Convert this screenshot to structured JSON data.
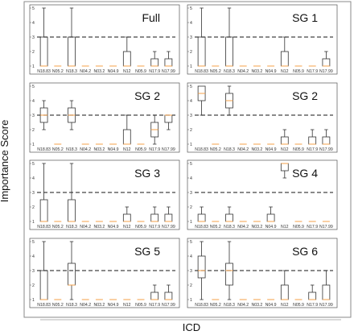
{
  "figure": {
    "ylabel": "Importance Score",
    "xlabel": "ICD"
  },
  "colors": {
    "median": "#f5a04a",
    "box": "#333333",
    "threshold": "#444444",
    "frame": "#555555"
  },
  "chart_data": [
    {
      "type": "box",
      "title": "Full",
      "categories": [
        "N18.83",
        "N05.2",
        "N18.3",
        "N04.2",
        "N03.2",
        "N04.9",
        "N12",
        "N05.9",
        "N17.9",
        "N17.99"
      ],
      "ylim": [
        1,
        5
      ],
      "yticks": [
        1,
        2,
        3,
        4,
        5
      ],
      "threshold": 3,
      "boxes": [
        {
          "min": 1,
          "q1": 1,
          "median": 1,
          "q3": 3,
          "max": 5
        },
        {
          "min": 1,
          "q1": 1,
          "median": 1,
          "q3": 1,
          "max": 1
        },
        {
          "min": 1,
          "q1": 1,
          "median": 1,
          "q3": 3,
          "max": 5
        },
        {
          "min": 1,
          "q1": 1,
          "median": 1,
          "q3": 1,
          "max": 1
        },
        {
          "min": 1,
          "q1": 1,
          "median": 1,
          "q3": 1,
          "max": 1
        },
        {
          "min": 1,
          "q1": 1,
          "median": 1,
          "q3": 1,
          "max": 1
        },
        {
          "min": 1,
          "q1": 1,
          "median": 1,
          "q3": 2,
          "max": 3
        },
        {
          "min": 1,
          "q1": 1,
          "median": 1,
          "q3": 1,
          "max": 1
        },
        {
          "min": 1,
          "q1": 1,
          "median": 1,
          "q3": 1.5,
          "max": 2
        },
        {
          "min": 1,
          "q1": 1,
          "median": 1,
          "q3": 1.5,
          "max": 2
        }
      ]
    },
    {
      "type": "box",
      "title": "SG 1",
      "categories": [
        "N18.83",
        "N05.2",
        "N18.3",
        "N04.2",
        "N03.2",
        "N04.9",
        "N12",
        "N05.9",
        "N17.9",
        "N17.99"
      ],
      "ylim": [
        1,
        5
      ],
      "yticks": [
        1,
        2,
        3,
        4,
        5
      ],
      "threshold": 3,
      "boxes": [
        {
          "min": 1,
          "q1": 1,
          "median": 1,
          "q3": 3,
          "max": 5
        },
        {
          "min": 1,
          "q1": 1,
          "median": 1,
          "q3": 1,
          "max": 1
        },
        {
          "min": 1,
          "q1": 1,
          "median": 1,
          "q3": 3,
          "max": 5
        },
        {
          "min": 1,
          "q1": 1,
          "median": 1,
          "q3": 1,
          "max": 1
        },
        {
          "min": 1,
          "q1": 1,
          "median": 1,
          "q3": 1,
          "max": 1
        },
        {
          "min": 1,
          "q1": 1,
          "median": 1,
          "q3": 1,
          "max": 1
        },
        {
          "min": 1,
          "q1": 1,
          "median": 1,
          "q3": 2,
          "max": 3
        },
        {
          "min": 1,
          "q1": 1,
          "median": 1,
          "q3": 1,
          "max": 1
        },
        {
          "min": 1,
          "q1": 1,
          "median": 1,
          "q3": 1,
          "max": 1
        },
        {
          "min": 1,
          "q1": 1,
          "median": 1,
          "q3": 1.5,
          "max": 2
        }
      ]
    },
    {
      "type": "box",
      "title": "SG 2",
      "categories": [
        "N18.83",
        "N05.2",
        "N18.3",
        "N04.2",
        "N03.2",
        "N04.9",
        "N12",
        "N05.9",
        "N17.9",
        "N17.99"
      ],
      "ylim": [
        1,
        5
      ],
      "yticks": [
        1,
        2,
        3,
        4,
        5
      ],
      "threshold": 3,
      "boxes": [
        {
          "min": 2,
          "q1": 2.5,
          "median": 3,
          "q3": 3.5,
          "max": 4
        },
        {
          "min": 1,
          "q1": 1,
          "median": 1,
          "q3": 1,
          "max": 1
        },
        {
          "min": 2,
          "q1": 2.5,
          "median": 3,
          "q3": 3.5,
          "max": 4
        },
        {
          "min": 1,
          "q1": 1,
          "median": 1,
          "q3": 1,
          "max": 1
        },
        {
          "min": 1,
          "q1": 1,
          "median": 1,
          "q3": 1,
          "max": 1
        },
        {
          "min": 1,
          "q1": 1,
          "median": 1,
          "q3": 1,
          "max": 1
        },
        {
          "min": 1,
          "q1": 1,
          "median": 1,
          "q3": 2,
          "max": 3
        },
        {
          "min": 1,
          "q1": 1,
          "median": 1,
          "q3": 1,
          "max": 1
        },
        {
          "min": 1,
          "q1": 1.5,
          "median": 2,
          "q3": 2.5,
          "max": 3
        },
        {
          "min": 2,
          "q1": 2.5,
          "median": 3,
          "q3": 3,
          "max": 3
        }
      ]
    },
    {
      "type": "box",
      "title": "SG 2",
      "categories": [
        "N18.83",
        "N05.2",
        "N18.3",
        "N04.2",
        "N03.2",
        "N04.9",
        "N12",
        "N05.9",
        "N17.9",
        "N17.99"
      ],
      "ylim": [
        1,
        5
      ],
      "yticks": [
        1,
        2,
        3,
        4,
        5
      ],
      "threshold": 3,
      "boxes": [
        {
          "min": 3,
          "q1": 4,
          "median": 4.5,
          "q3": 5,
          "max": 5
        },
        {
          "min": 1,
          "q1": 1,
          "median": 1,
          "q3": 1,
          "max": 1
        },
        {
          "min": 3,
          "q1": 3.5,
          "median": 4,
          "q3": 4.5,
          "max": 5
        },
        {
          "min": 1,
          "q1": 1,
          "median": 1,
          "q3": 1,
          "max": 1
        },
        {
          "min": 1,
          "q1": 1,
          "median": 1,
          "q3": 1,
          "max": 1
        },
        {
          "min": 1,
          "q1": 1,
          "median": 1,
          "q3": 1,
          "max": 1
        },
        {
          "min": 1,
          "q1": 1,
          "median": 1,
          "q3": 1.5,
          "max": 2
        },
        {
          "min": 1,
          "q1": 1,
          "median": 1,
          "q3": 1,
          "max": 1
        },
        {
          "min": 1,
          "q1": 1,
          "median": 1,
          "q3": 1.5,
          "max": 2
        },
        {
          "min": 1,
          "q1": 1,
          "median": 1,
          "q3": 1.5,
          "max": 2
        }
      ]
    },
    {
      "type": "box",
      "title": "SG 3",
      "categories": [
        "N18.83",
        "N05.2",
        "N18.3",
        "N04.2",
        "N03.2",
        "N04.9",
        "N12",
        "N05.9",
        "N17.9",
        "N17.99"
      ],
      "ylim": [
        1,
        5
      ],
      "yticks": [
        1,
        2,
        3,
        4,
        5
      ],
      "threshold": 3,
      "boxes": [
        {
          "min": 1,
          "q1": 1,
          "median": 1,
          "q3": 2.5,
          "max": 5
        },
        {
          "min": 1,
          "q1": 1,
          "median": 1,
          "q3": 1,
          "max": 1
        },
        {
          "min": 1,
          "q1": 1,
          "median": 1,
          "q3": 2.5,
          "max": 5
        },
        {
          "min": 1,
          "q1": 1,
          "median": 1,
          "q3": 1,
          "max": 1
        },
        {
          "min": 1,
          "q1": 1,
          "median": 1,
          "q3": 1,
          "max": 1
        },
        {
          "min": 1,
          "q1": 1,
          "median": 1,
          "q3": 1,
          "max": 1
        },
        {
          "min": 1,
          "q1": 1,
          "median": 1,
          "q3": 1.5,
          "max": 2
        },
        {
          "min": 1,
          "q1": 1,
          "median": 1,
          "q3": 1,
          "max": 1
        },
        {
          "min": 1,
          "q1": 1,
          "median": 1,
          "q3": 1.5,
          "max": 2
        },
        {
          "min": 1,
          "q1": 1,
          "median": 1,
          "q3": 1.5,
          "max": 2
        }
      ]
    },
    {
      "type": "box",
      "title": "SG 4",
      "categories": [
        "N18.83",
        "N05.2",
        "N18.3",
        "N04.2",
        "N03.2",
        "N04.9",
        "N12",
        "N05.9",
        "N17.9",
        "N17.99"
      ],
      "ylim": [
        1,
        5
      ],
      "yticks": [
        1,
        2,
        3,
        4,
        5
      ],
      "threshold": 3,
      "boxes": [
        {
          "min": 1,
          "q1": 1,
          "median": 1,
          "q3": 1.5,
          "max": 2
        },
        {
          "min": 1,
          "q1": 1,
          "median": 1,
          "q3": 1,
          "max": 1
        },
        {
          "min": 1,
          "q1": 1,
          "median": 1,
          "q3": 1.5,
          "max": 2
        },
        {
          "min": 1,
          "q1": 1,
          "median": 1,
          "q3": 1,
          "max": 1
        },
        {
          "min": 1,
          "q1": 1,
          "median": 1,
          "q3": 1,
          "max": 1
        },
        {
          "min": 1,
          "q1": 1,
          "median": 1,
          "q3": 1.5,
          "max": 2
        },
        {
          "min": 4,
          "q1": 4.5,
          "median": 5,
          "q3": 5,
          "max": 5
        },
        {
          "min": 1,
          "q1": 1,
          "median": 1,
          "q3": 1,
          "max": 1
        },
        {
          "min": 1,
          "q1": 1,
          "median": 1,
          "q3": 1,
          "max": 1
        },
        {
          "min": 1,
          "q1": 1,
          "median": 1,
          "q3": 1,
          "max": 1
        }
      ]
    },
    {
      "type": "box",
      "title": "SG 5",
      "categories": [
        "N18.83",
        "N05.2",
        "N18.3",
        "N04.2",
        "N03.2",
        "N04.9",
        "N12",
        "N05.9",
        "N17.9",
        "N17.99"
      ],
      "ylim": [
        1,
        5
      ],
      "yticks": [
        1,
        2,
        3,
        4,
        5
      ],
      "threshold": 3,
      "boxes": [
        {
          "min": 1,
          "q1": 1,
          "median": 1,
          "q3": 3,
          "max": 5
        },
        {
          "min": 1,
          "q1": 1,
          "median": 1,
          "q3": 1,
          "max": 1
        },
        {
          "min": 1,
          "q1": 2,
          "median": 2,
          "q3": 3.5,
          "max": 5
        },
        {
          "min": 1,
          "q1": 1,
          "median": 1,
          "q3": 1,
          "max": 1
        },
        {
          "min": 1,
          "q1": 1,
          "median": 1,
          "q3": 1,
          "max": 1
        },
        {
          "min": 1,
          "q1": 1,
          "median": 1,
          "q3": 1,
          "max": 1
        },
        {
          "min": 1,
          "q1": 1,
          "median": 1,
          "q3": 1,
          "max": 1
        },
        {
          "min": 1,
          "q1": 1,
          "median": 1,
          "q3": 1,
          "max": 1
        },
        {
          "min": 1,
          "q1": 1,
          "median": 1,
          "q3": 1.5,
          "max": 2
        },
        {
          "min": 1,
          "q1": 1,
          "median": 1,
          "q3": 1.5,
          "max": 2
        }
      ]
    },
    {
      "type": "box",
      "title": "SG 6",
      "categories": [
        "N18.83",
        "N05.2",
        "N18.3",
        "N04.2",
        "N03.2",
        "N04.9",
        "N12",
        "N05.9",
        "N17.9",
        "N17.99"
      ],
      "ylim": [
        1,
        5
      ],
      "yticks": [
        1,
        2,
        3,
        4,
        5
      ],
      "threshold": 3,
      "boxes": [
        {
          "min": 1,
          "q1": 2.5,
          "median": 3,
          "q3": 4,
          "max": 5
        },
        {
          "min": 1,
          "q1": 1,
          "median": 1,
          "q3": 1,
          "max": 1
        },
        {
          "min": 1,
          "q1": 2,
          "median": 3,
          "q3": 3.5,
          "max": 5
        },
        {
          "min": 1,
          "q1": 1,
          "median": 1,
          "q3": 1,
          "max": 1
        },
        {
          "min": 1,
          "q1": 1,
          "median": 1,
          "q3": 1,
          "max": 1
        },
        {
          "min": 1,
          "q1": 1,
          "median": 1,
          "q3": 1,
          "max": 1
        },
        {
          "min": 1,
          "q1": 1,
          "median": 1,
          "q3": 2,
          "max": 3
        },
        {
          "min": 1,
          "q1": 1,
          "median": 1,
          "q3": 1,
          "max": 1
        },
        {
          "min": 1,
          "q1": 1,
          "median": 1,
          "q3": 1.5,
          "max": 2
        },
        {
          "min": 1,
          "q1": 1,
          "median": 1,
          "q3": 2,
          "max": 3
        }
      ]
    }
  ]
}
